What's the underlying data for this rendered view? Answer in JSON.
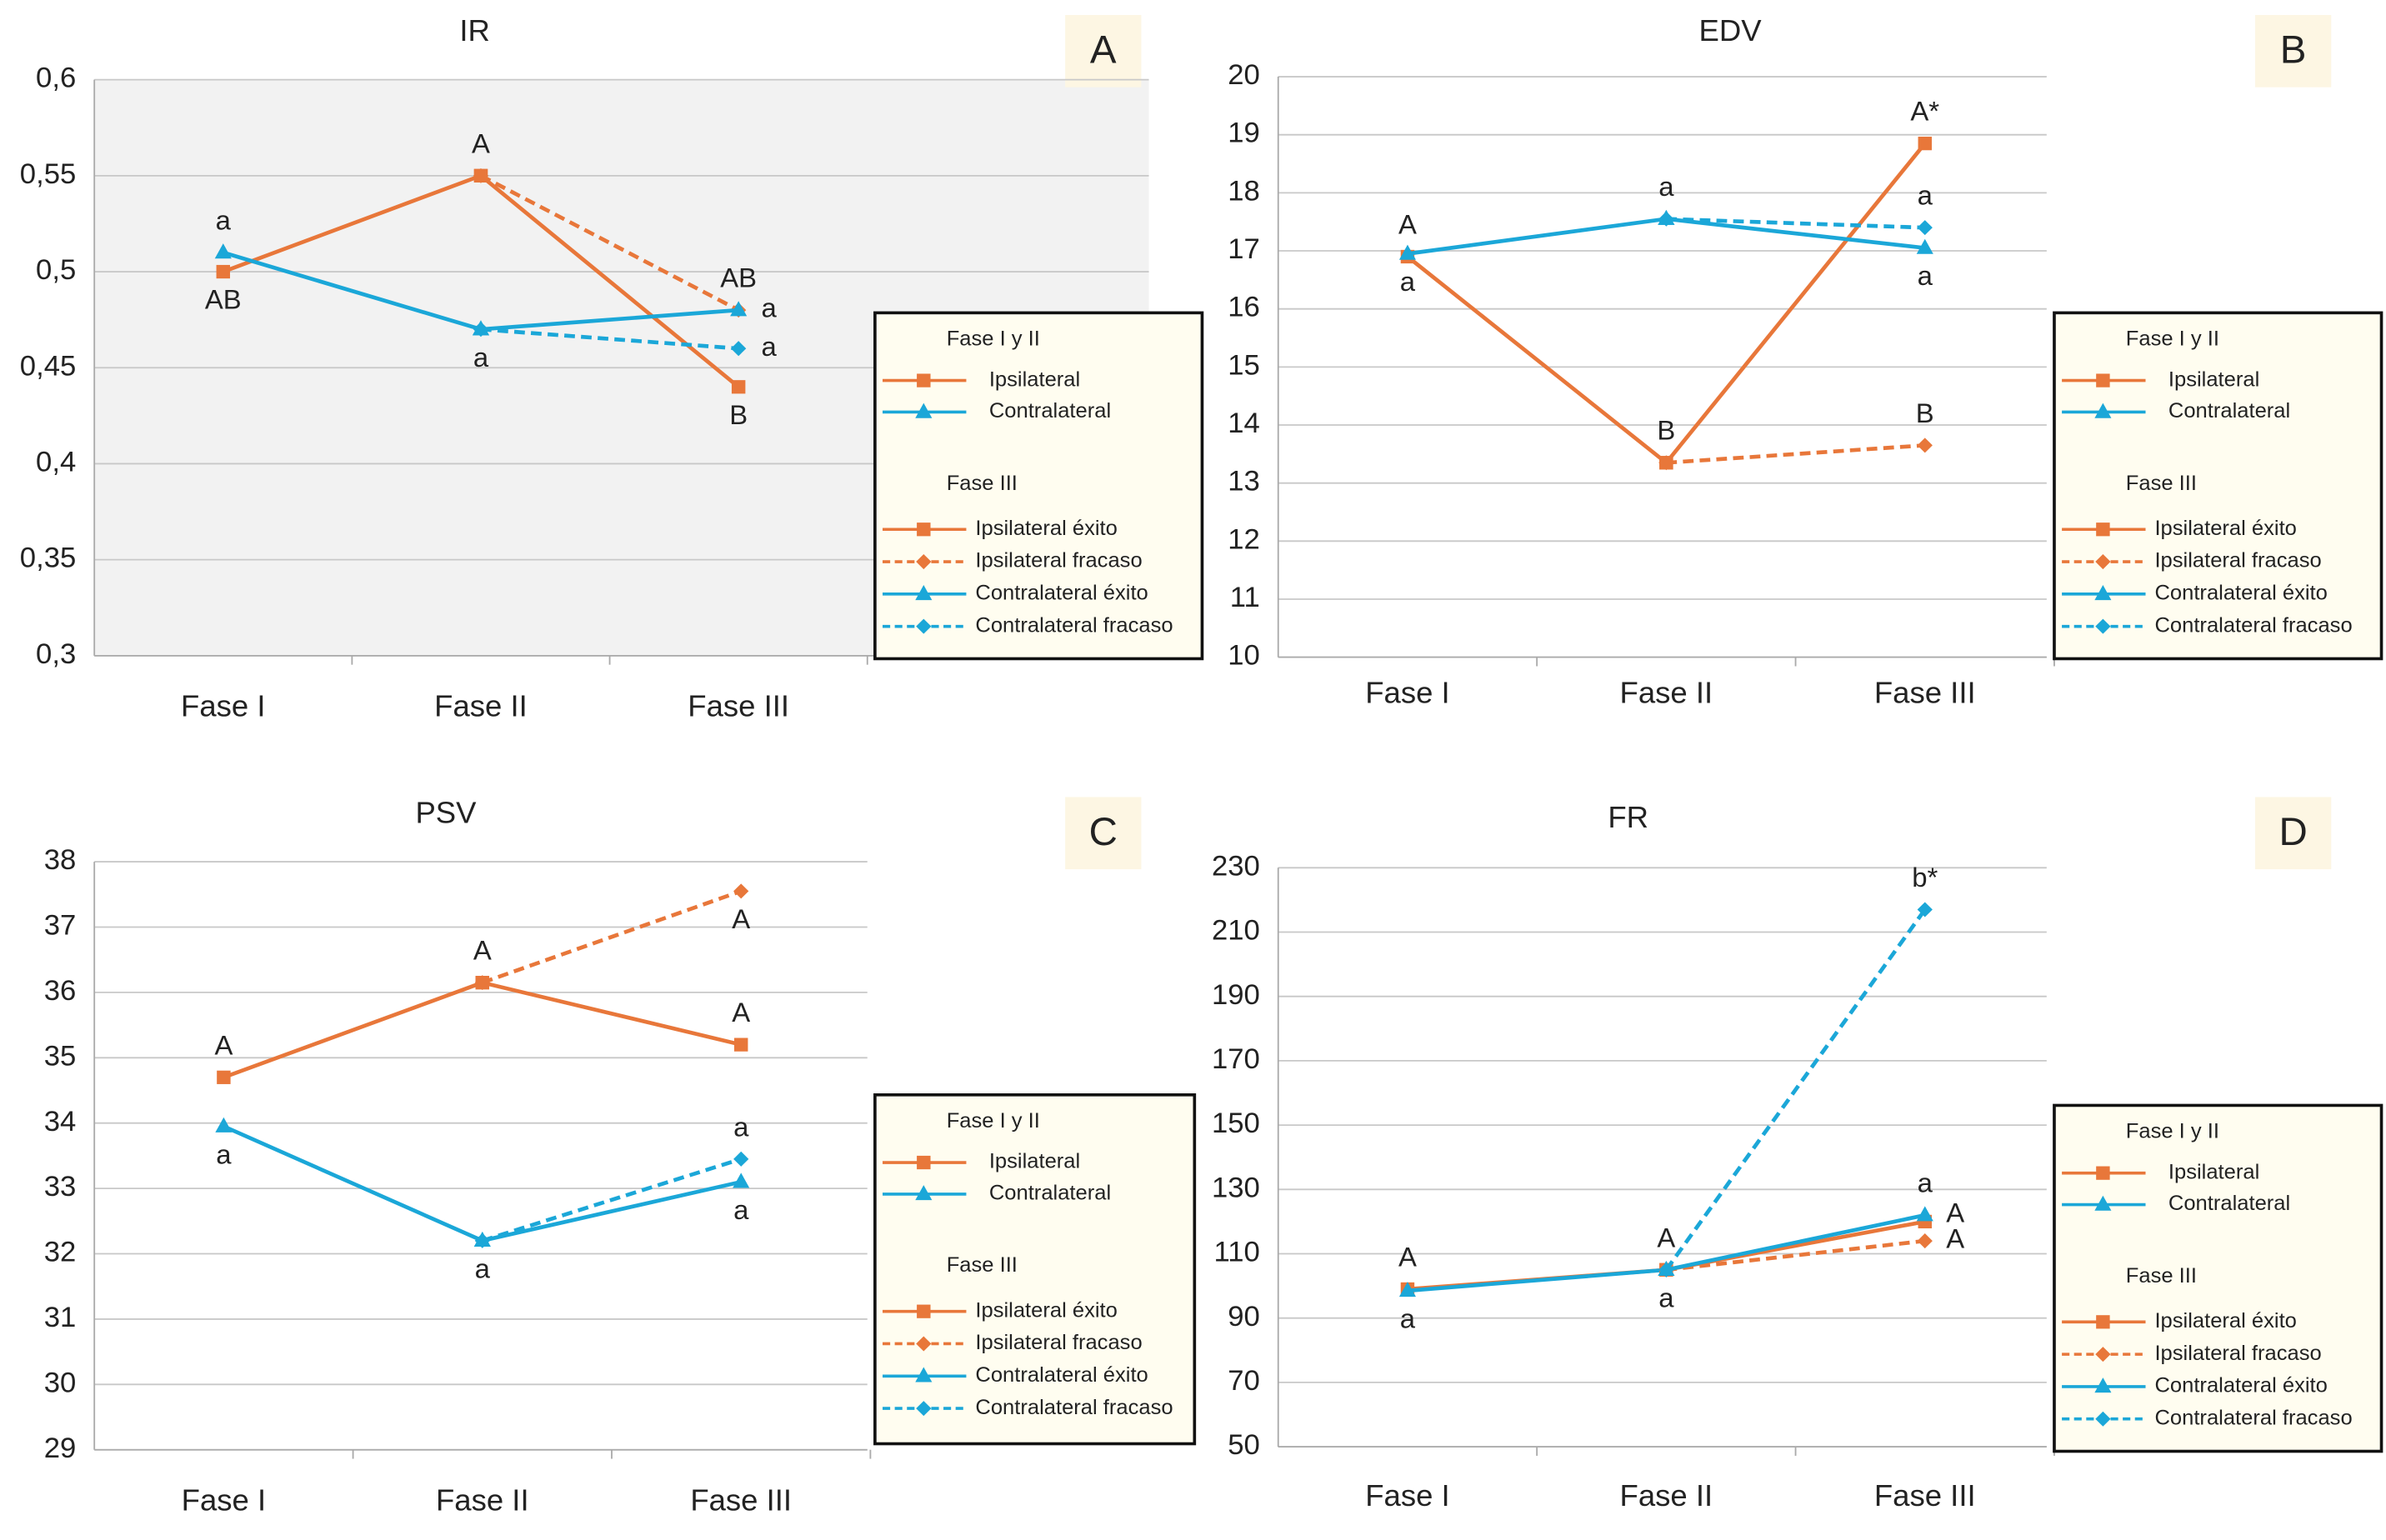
{
  "chart_data": [
    {
      "type": "line",
      "title": "IR",
      "panel": "A",
      "background": "#f2f2f2",
      "categories": [
        "Fase I",
        "Fase II",
        "Fase III"
      ],
      "ylim": [
        0.3,
        0.6
      ],
      "yticks": [
        {
          "value": 0.3,
          "label": "0,3"
        },
        {
          "value": 0.35,
          "label": "0,35"
        },
        {
          "value": 0.4,
          "label": "0,4"
        },
        {
          "value": 0.45,
          "label": "0,45"
        },
        {
          "value": 0.5,
          "label": "0,5"
        },
        {
          "value": 0.55,
          "label": "0,55"
        },
        {
          "value": 0.6,
          "label": "0,6"
        }
      ],
      "series_groups": [
        {
          "name": "Fase I y II",
          "series": [
            {
              "name": "Ipsilateral",
              "color": "#e8773a",
              "marker": "square",
              "dashed": false,
              "values": [
                0.5,
                0.55,
                null
              ]
            },
            {
              "name": "Contralateral",
              "color": "#1ba7d8",
              "marker": "triangle",
              "dashed": false,
              "values": [
                0.51,
                0.47,
                null
              ]
            }
          ]
        },
        {
          "name": "Fase III",
          "series": [
            {
              "name": "Ipsilateral éxito",
              "color": "#e8773a",
              "marker": "square",
              "dashed": false,
              "values": [
                null,
                0.55,
                0.44
              ]
            },
            {
              "name": "Ipsilateral fracaso",
              "color": "#e8773a",
              "marker": "diamond",
              "dashed": true,
              "values": [
                null,
                0.55,
                0.48
              ]
            },
            {
              "name": "Contralateral éxito",
              "color": "#1ba7d8",
              "marker": "triangle",
              "dashed": false,
              "values": [
                null,
                0.47,
                0.48
              ]
            },
            {
              "name": "Contralateral fracaso",
              "color": "#1ba7d8",
              "marker": "diamond",
              "dashed": true,
              "values": [
                null,
                0.47,
                0.46
              ]
            }
          ]
        }
      ],
      "annotations": [
        {
          "text": "a",
          "group": 0,
          "series": 1,
          "index": 0,
          "side": "above"
        },
        {
          "text": "AB",
          "group": 0,
          "series": 0,
          "index": 0,
          "side": "below"
        },
        {
          "text": "A",
          "group": 0,
          "series": 0,
          "index": 1,
          "side": "above"
        },
        {
          "text": "a",
          "group": 0,
          "series": 1,
          "index": 1,
          "side": "below"
        },
        {
          "text": "AB",
          "group": 1,
          "series": 1,
          "index": 2,
          "side": "above"
        },
        {
          "text": "a",
          "group": 1,
          "series": 1,
          "index": 2,
          "side": "right"
        },
        {
          "text": "a",
          "group": 1,
          "series": 3,
          "index": 2,
          "side": "right"
        },
        {
          "text": "B",
          "group": 1,
          "series": 0,
          "index": 2,
          "side": "below"
        }
      ]
    },
    {
      "type": "line",
      "title": "EDV",
      "panel": "B",
      "background": "#ffffff",
      "categories": [
        "Fase I",
        "Fase II",
        "Fase III"
      ],
      "ylim": [
        10,
        20
      ],
      "yticks": [
        10,
        11,
        12,
        13,
        14,
        15,
        16,
        17,
        18,
        19,
        20
      ],
      "series_groups": [
        {
          "name": "Fase I y II",
          "series": [
            {
              "name": "Ipsilateral",
              "color": "#e8773a",
              "marker": "square",
              "dashed": false,
              "values": [
                16.9,
                13.35,
                null
              ]
            },
            {
              "name": "Contralateral",
              "color": "#1ba7d8",
              "marker": "triangle",
              "dashed": false,
              "values": [
                16.95,
                17.55,
                null
              ]
            }
          ]
        },
        {
          "name": "Fase III",
          "series": [
            {
              "name": "Ipsilateral éxito",
              "color": "#e8773a",
              "marker": "square",
              "dashed": false,
              "values": [
                null,
                13.35,
                18.85
              ]
            },
            {
              "name": "Ipsilateral fracaso",
              "color": "#e8773a",
              "marker": "diamond",
              "dashed": true,
              "values": [
                null,
                13.35,
                13.65
              ]
            },
            {
              "name": "Contralateral éxito",
              "color": "#1ba7d8",
              "marker": "triangle",
              "dashed": false,
              "values": [
                null,
                17.55,
                17.05
              ]
            },
            {
              "name": "Contralateral fracaso",
              "color": "#1ba7d8",
              "marker": "diamond",
              "dashed": true,
              "values": [
                null,
                17.55,
                17.4
              ]
            }
          ]
        }
      ],
      "annotations": [
        {
          "text": "A",
          "group": 0,
          "series": 0,
          "index": 0,
          "side": "above"
        },
        {
          "text": "a",
          "group": 0,
          "series": 1,
          "index": 0,
          "side": "below"
        },
        {
          "text": "a",
          "group": 0,
          "series": 1,
          "index": 1,
          "side": "above"
        },
        {
          "text": "B",
          "group": 0,
          "series": 0,
          "index": 1,
          "side": "above"
        },
        {
          "text": "A*",
          "group": 1,
          "series": 0,
          "index": 2,
          "side": "above"
        },
        {
          "text": "a",
          "group": 1,
          "series": 3,
          "index": 2,
          "side": "above"
        },
        {
          "text": "a",
          "group": 1,
          "series": 2,
          "index": 2,
          "side": "below"
        },
        {
          "text": "B",
          "group": 1,
          "series": 1,
          "index": 2,
          "side": "above"
        }
      ]
    },
    {
      "type": "line",
      "title": "PSV",
      "panel": "C",
      "background": "#ffffff",
      "categories": [
        "Fase I",
        "Fase II",
        "Fase III"
      ],
      "ylim": [
        29,
        38
      ],
      "yticks": [
        29,
        30,
        31,
        32,
        33,
        34,
        35,
        36,
        37,
        38
      ],
      "series_groups": [
        {
          "name": "Fase I y II",
          "series": [
            {
              "name": "Ipsilateral",
              "color": "#e8773a",
              "marker": "square",
              "dashed": false,
              "values": [
                34.7,
                36.15,
                null
              ]
            },
            {
              "name": "Contralateral",
              "color": "#1ba7d8",
              "marker": "triangle",
              "dashed": false,
              "values": [
                33.95,
                32.2,
                null
              ]
            }
          ]
        },
        {
          "name": "Fase III",
          "series": [
            {
              "name": "Ipsilateral éxito",
              "color": "#e8773a",
              "marker": "square",
              "dashed": false,
              "values": [
                null,
                36.15,
                35.2
              ]
            },
            {
              "name": "Ipsilateral fracaso",
              "color": "#e8773a",
              "marker": "diamond",
              "dashed": true,
              "values": [
                null,
                36.15,
                37.55
              ]
            },
            {
              "name": "Contralateral éxito",
              "color": "#1ba7d8",
              "marker": "triangle",
              "dashed": false,
              "values": [
                null,
                32.2,
                33.1
              ]
            },
            {
              "name": "Contralateral fracaso",
              "color": "#1ba7d8",
              "marker": "diamond",
              "dashed": true,
              "values": [
                null,
                32.2,
                33.45
              ]
            }
          ]
        }
      ],
      "annotations": [
        {
          "text": "A",
          "group": 0,
          "series": 0,
          "index": 0,
          "side": "above"
        },
        {
          "text": "a",
          "group": 0,
          "series": 1,
          "index": 0,
          "side": "below"
        },
        {
          "text": "A",
          "group": 0,
          "series": 0,
          "index": 1,
          "side": "above"
        },
        {
          "text": "a",
          "group": 0,
          "series": 1,
          "index": 1,
          "side": "below"
        },
        {
          "text": "A",
          "group": 1,
          "series": 1,
          "index": 2,
          "side": "below"
        },
        {
          "text": "A",
          "group": 1,
          "series": 0,
          "index": 2,
          "side": "above"
        },
        {
          "text": "a",
          "group": 1,
          "series": 3,
          "index": 2,
          "side": "above"
        },
        {
          "text": "a",
          "group": 1,
          "series": 2,
          "index": 2,
          "side": "below"
        }
      ]
    },
    {
      "type": "line",
      "title": "FR",
      "panel": "D",
      "background": "#ffffff",
      "categories": [
        "Fase I",
        "Fase II",
        "Fase III"
      ],
      "ylim": [
        50,
        230
      ],
      "yticks": [
        50,
        70,
        90,
        110,
        130,
        150,
        170,
        190,
        210,
        230
      ],
      "series_groups": [
        {
          "name": "Fase I y II",
          "series": [
            {
              "name": "Ipsilateral",
              "color": "#e8773a",
              "marker": "square",
              "dashed": false,
              "values": [
                99,
                105,
                null
              ]
            },
            {
              "name": "Contralateral",
              "color": "#1ba7d8",
              "marker": "triangle",
              "dashed": false,
              "values": [
                98.5,
                105,
                null
              ]
            }
          ]
        },
        {
          "name": "Fase III",
          "series": [
            {
              "name": "Ipsilateral éxito",
              "color": "#e8773a",
              "marker": "square",
              "dashed": false,
              "values": [
                null,
                105,
                120
              ]
            },
            {
              "name": "Ipsilateral fracaso",
              "color": "#e8773a",
              "marker": "diamond",
              "dashed": true,
              "values": [
                null,
                105,
                114
              ]
            },
            {
              "name": "Contralateral éxito",
              "color": "#1ba7d8",
              "marker": "triangle",
              "dashed": false,
              "values": [
                null,
                105,
                122
              ]
            },
            {
              "name": "Contralateral fracaso",
              "color": "#1ba7d8",
              "marker": "diamond",
              "dashed": true,
              "values": [
                null,
                105,
                217
              ]
            }
          ]
        }
      ],
      "annotations": [
        {
          "text": "A",
          "group": 0,
          "series": 0,
          "index": 0,
          "side": "above"
        },
        {
          "text": "a",
          "group": 0,
          "series": 1,
          "index": 0,
          "side": "below"
        },
        {
          "text": "A",
          "group": 0,
          "series": 1,
          "index": 1,
          "side": "above"
        },
        {
          "text": "a",
          "group": 0,
          "series": 0,
          "index": 1,
          "side": "below"
        },
        {
          "text": "b*",
          "group": 1,
          "series": 3,
          "index": 2,
          "side": "above"
        },
        {
          "text": "a",
          "group": 1,
          "series": 2,
          "index": 2,
          "side": "above"
        },
        {
          "text": "A",
          "group": 1,
          "series": 2,
          "index": 2,
          "side": "right"
        },
        {
          "text": "A",
          "group": 1,
          "series": 1,
          "index": 2,
          "side": "right"
        }
      ]
    }
  ]
}
